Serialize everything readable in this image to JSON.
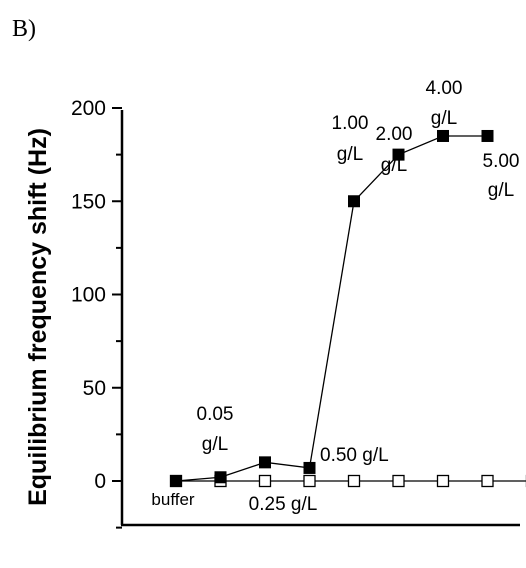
{
  "panel_label": "B)",
  "chart_data": {
    "type": "line",
    "ylabel": "Equilibrium frequency shift (Hz)",
    "xlabel": "",
    "ylim": [
      -25,
      200
    ],
    "yticks": [
      0,
      50,
      100,
      150,
      200
    ],
    "yticks_minor": [
      -25,
      25,
      75,
      125,
      175
    ],
    "grid": false,
    "legend": "none",
    "x": [
      0,
      1,
      2,
      3,
      4,
      5,
      6,
      7,
      8
    ],
    "series": [
      {
        "marker": "filled-square",
        "color": "#000000",
        "points": [
          [
            0,
            0
          ],
          [
            1,
            2
          ],
          [
            2,
            10
          ],
          [
            3,
            7
          ],
          [
            4,
            150
          ],
          [
            5,
            175
          ],
          [
            6,
            185
          ],
          [
            7,
            185
          ]
        ]
      },
      {
        "marker": "open-square",
        "color": "#000000",
        "points": [
          [
            0,
            0
          ],
          [
            1,
            0
          ],
          [
            2,
            0
          ],
          [
            3,
            0
          ],
          [
            4,
            0
          ],
          [
            5,
            0
          ],
          [
            6,
            0
          ],
          [
            7,
            0
          ],
          [
            8,
            0
          ]
        ]
      }
    ],
    "annotations": [
      {
        "id": "buffer",
        "lines": [
          "buffer"
        ]
      },
      {
        "id": "c005",
        "lines": [
          "0.05",
          "g/L"
        ]
      },
      {
        "id": "c025",
        "lines": [
          "0.25 g/L"
        ]
      },
      {
        "id": "c050",
        "lines": [
          "0.50 g/L"
        ]
      },
      {
        "id": "c100",
        "lines": [
          "1.00",
          "g/L"
        ]
      },
      {
        "id": "c200",
        "lines": [
          "2.00",
          "g/L"
        ]
      },
      {
        "id": "c400",
        "lines": [
          "4.00",
          "g/L"
        ]
      },
      {
        "id": "c500",
        "lines": [
          "5.00",
          "g/L"
        ]
      }
    ]
  }
}
